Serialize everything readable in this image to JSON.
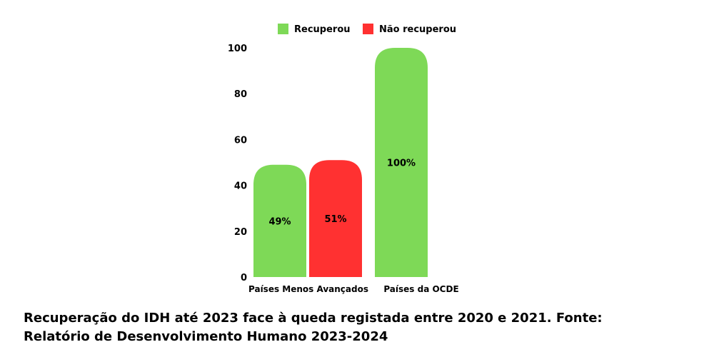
{
  "chart_data": {
    "type": "bar",
    "categories": [
      "Países Menos Avançados",
      "Países da OCDE"
    ],
    "series": [
      {
        "name": "Recuperou",
        "color": "#7ed957",
        "values": [
          49,
          100
        ],
        "labels": [
          "49%",
          "100%"
        ]
      },
      {
        "name": "Não recuperou",
        "color": "#ff3131",
        "values": [
          51,
          null
        ],
        "labels": [
          "51%",
          ""
        ]
      }
    ],
    "yticks": [
      "0",
      "20",
      "40",
      "60",
      "80",
      "100"
    ],
    "ylim": [
      0,
      100
    ],
    "legend_position": "top",
    "grid": false
  },
  "caption": {
    "line1": "Recuperação do IDH até 2023 face à queda registada entre 2020 e 2021. Fonte:",
    "line2": "Relatório de Desenvolvimento Humano 2023-2024"
  }
}
